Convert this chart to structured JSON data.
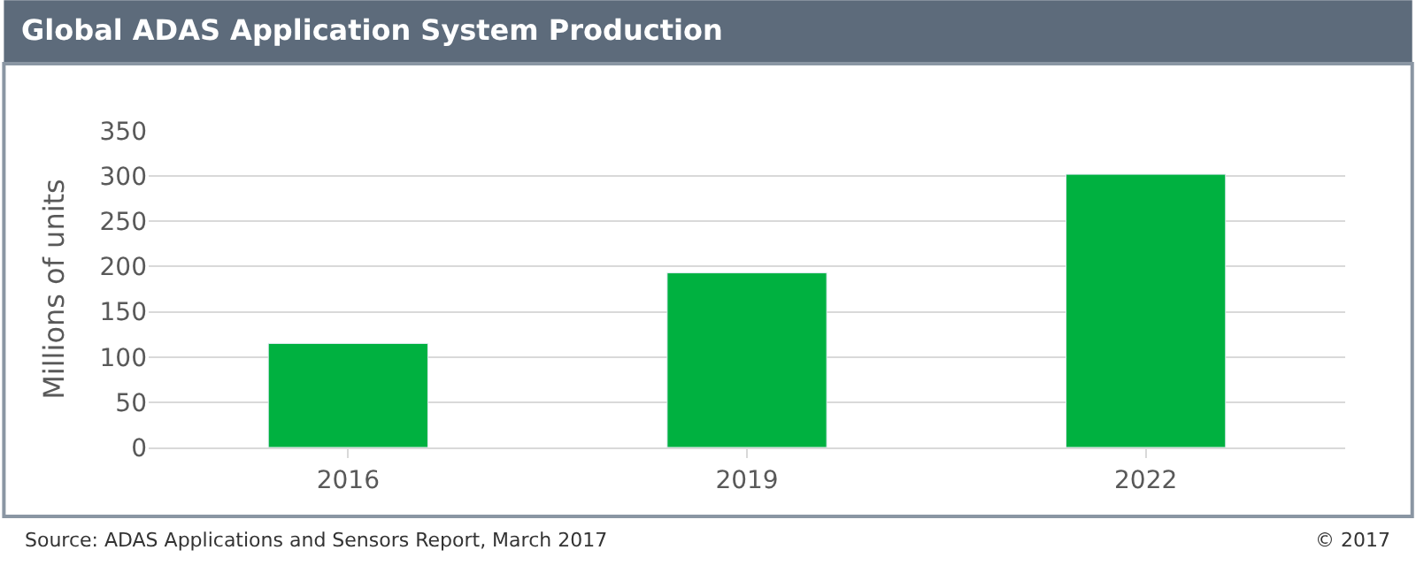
{
  "chart_data": {
    "type": "bar",
    "title": "Global ADAS Application System Production",
    "ylabel": "Millions of units",
    "categories": [
      "2016",
      "2019",
      "2022"
    ],
    "series": [
      {
        "color": "#00b140",
        "values": [
          115,
          193,
          302
        ]
      }
    ],
    "ylim": [
      0,
      350
    ],
    "yticks": [
      0,
      50,
      100,
      150,
      200,
      250,
      300,
      350
    ],
    "grid": "y",
    "annotations": [
      "Source: ADAS Applications and Sensors Report, March 2017",
      "© 2017"
    ]
  }
}
